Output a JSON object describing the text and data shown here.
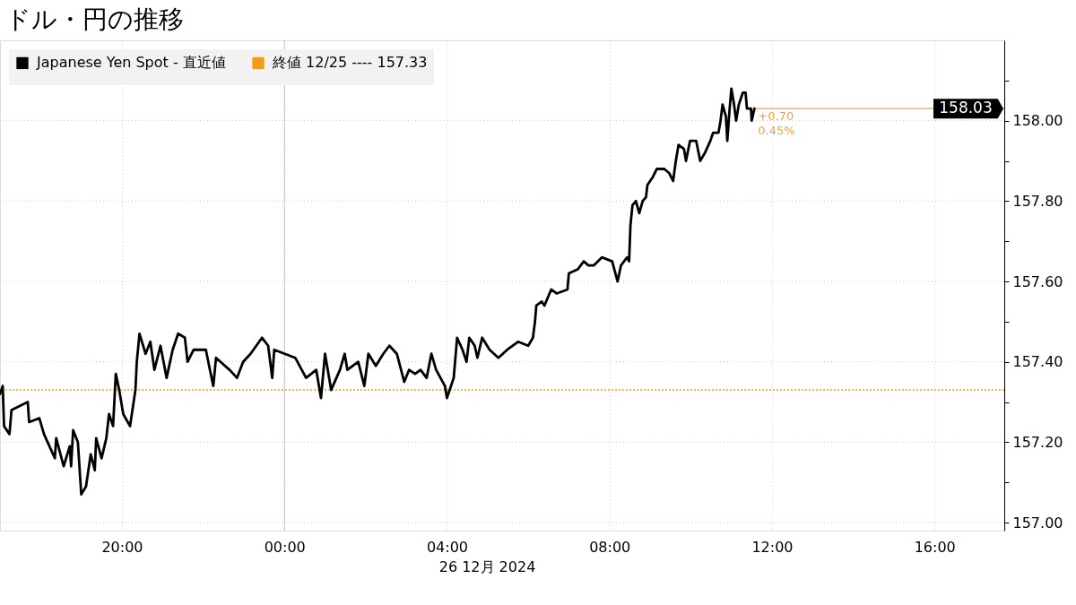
{
  "chart_data": {
    "type": "line",
    "title": "ドル・円の推移",
    "xlabel": "26 12月 2024",
    "x": [
      "2024-12-25T17:00",
      "2024-12-25T17:04",
      "2024-12-25T17:06",
      "2024-12-25T17:14",
      "2024-12-25T17:17",
      "2024-12-25T17:41",
      "2024-12-25T17:43",
      "2024-12-25T17:58",
      "2024-12-25T18:05",
      "2024-12-25T18:21",
      "2024-12-25T18:23",
      "2024-12-25T18:34",
      "2024-12-25T18:43",
      "2024-12-25T18:45",
      "2024-12-25T18:48",
      "2024-12-25T18:55",
      "2024-12-25T19:00",
      "2024-12-25T19:07",
      "2024-12-25T19:14",
      "2024-12-25T19:20",
      "2024-12-25T19:22",
      "2024-12-25T19:30",
      "2024-12-25T19:37",
      "2024-12-25T19:41",
      "2024-12-25T19:47",
      "2024-12-25T19:51",
      "2024-12-25T19:56",
      "2024-12-25T20:02",
      "2024-12-25T20:12",
      "2024-12-25T20:20",
      "2024-12-25T20:22",
      "2024-12-25T20:26",
      "2024-12-25T20:35",
      "2024-12-25T20:42",
      "2024-12-25T20:48",
      "2024-12-25T20:57",
      "2024-12-25T21:06",
      "2024-12-25T21:15",
      "2024-12-25T21:23",
      "2024-12-25T21:33",
      "2024-12-25T21:37",
      "2024-12-25T21:46",
      "2024-12-25T22:04",
      "2024-12-25T22:10",
      "2024-12-25T22:15",
      "2024-12-25T22:19",
      "2024-12-25T22:39",
      "2024-12-25T22:50",
      "2024-12-25T22:59",
      "2024-12-25T23:10",
      "2024-12-25T23:27",
      "2024-12-25T23:36",
      "2024-12-25T23:42",
      "2024-12-25T23:45",
      "2024-12-26T00:16",
      "2024-12-26T00:32",
      "2024-12-26T00:47",
      "2024-12-26T00:54",
      "2024-12-26T01:00",
      "2024-12-26T01:09",
      "2024-12-26T01:22",
      "2024-12-26T01:29",
      "2024-12-26T01:33",
      "2024-12-26T01:49",
      "2024-12-26T01:58",
      "2024-12-26T02:04",
      "2024-12-26T02:15",
      "2024-12-26T02:26",
      "2024-12-26T02:35",
      "2024-12-26T02:46",
      "2024-12-26T02:57",
      "2024-12-26T03:04",
      "2024-12-26T03:13",
      "2024-12-26T03:21",
      "2024-12-26T03:30",
      "2024-12-26T03:37",
      "2024-12-26T03:44",
      "2024-12-26T03:57",
      "2024-12-26T04:00",
      "2024-12-26T04:10",
      "2024-12-26T04:15",
      "2024-12-26T04:23",
      "2024-12-26T04:29",
      "2024-12-26T04:33",
      "2024-12-26T04:41",
      "2024-12-26T04:45",
      "2024-12-26T04:52",
      "2024-12-26T05:03",
      "2024-12-26T05:16",
      "2024-12-26T05:29",
      "2024-12-26T05:45",
      "2024-12-26T06:00",
      "2024-12-26T06:07",
      "2024-12-26T06:10",
      "2024-12-26T06:12",
      "2024-12-26T06:20",
      "2024-12-26T06:24",
      "2024-12-26T06:34",
      "2024-12-26T06:42",
      "2024-12-26T06:58",
      "2024-12-26T07:00",
      "2024-12-26T07:13",
      "2024-12-26T07:22",
      "2024-12-26T07:29",
      "2024-12-26T07:37",
      "2024-12-26T07:49",
      "2024-12-26T08:04",
      "2024-12-26T08:12",
      "2024-12-26T08:17",
      "2024-12-26T08:26",
      "2024-12-26T08:29",
      "2024-12-26T08:31",
      "2024-12-26T08:34",
      "2024-12-26T08:39",
      "2024-12-26T08:44",
      "2024-12-26T08:49",
      "2024-12-26T08:54",
      "2024-12-26T08:56",
      "2024-12-26T09:04",
      "2024-12-26T09:10",
      "2024-12-26T09:21",
      "2024-12-26T09:28",
      "2024-12-26T09:34",
      "2024-12-26T09:38",
      "2024-12-26T09:42",
      "2024-12-26T09:50",
      "2024-12-26T09:53",
      "2024-12-26T09:59",
      "2024-12-26T10:08",
      "2024-12-26T10:14",
      "2024-12-26T10:21",
      "2024-12-26T10:29",
      "2024-12-26T10:33",
      "2024-12-26T10:41",
      "2024-12-26T10:44",
      "2024-12-26T10:47",
      "2024-12-26T10:52",
      "2024-12-26T10:54",
      "2024-12-26T10:57",
      "2024-12-26T11:00",
      "2024-12-26T11:04",
      "2024-12-26T11:07",
      "2024-12-26T11:11",
      "2024-12-26T11:17",
      "2024-12-26T11:21",
      "2024-12-26T11:23",
      "2024-12-26T11:29",
      "2024-12-26T11:30",
      "2024-12-26T11:34"
    ],
    "series": [
      {
        "name": "Japanese Yen Spot - 直近値",
        "color": "#000000",
        "values": [
          157.32,
          157.34,
          157.24,
          157.22,
          157.28,
          157.3,
          157.25,
          157.26,
          157.22,
          157.16,
          157.21,
          157.14,
          157.19,
          157.14,
          157.23,
          157.2,
          157.07,
          157.09,
          157.17,
          157.13,
          157.21,
          157.16,
          157.21,
          157.27,
          157.24,
          157.37,
          157.33,
          157.27,
          157.24,
          157.33,
          157.4,
          157.47,
          157.42,
          157.45,
          157.38,
          157.44,
          157.36,
          157.43,
          157.47,
          157.46,
          157.4,
          157.43,
          157.43,
          157.38,
          157.34,
          157.41,
          157.38,
          157.36,
          157.4,
          157.42,
          157.46,
          157.44,
          157.36,
          157.43,
          157.41,
          157.36,
          157.38,
          157.31,
          157.42,
          157.33,
          157.38,
          157.42,
          157.38,
          157.4,
          157.34,
          157.42,
          157.39,
          157.42,
          157.44,
          157.42,
          157.35,
          157.38,
          157.37,
          157.38,
          157.36,
          157.42,
          157.38,
          157.34,
          157.31,
          157.36,
          157.46,
          157.43,
          157.4,
          157.46,
          157.44,
          157.41,
          157.46,
          157.43,
          157.41,
          157.43,
          157.45,
          157.44,
          157.46,
          157.5,
          157.54,
          157.55,
          157.54,
          157.58,
          157.57,
          157.58,
          157.62,
          157.63,
          157.65,
          157.64,
          157.64,
          157.66,
          157.65,
          157.6,
          157.64,
          157.66,
          157.65,
          157.74,
          157.79,
          157.8,
          157.77,
          157.8,
          157.81,
          157.84,
          157.86,
          157.88,
          157.88,
          157.87,
          157.85,
          157.9,
          157.94,
          157.93,
          157.9,
          157.95,
          157.95,
          157.9,
          157.92,
          157.95,
          157.97,
          157.97,
          158.0,
          158.04,
          158.01,
          157.95,
          158.02,
          158.08,
          158.04,
          158.0,
          158.04,
          158.07,
          158.07,
          158.03,
          158.03,
          158.0,
          158.03
        ]
      }
    ],
    "xlim": [
      "2024-12-25T17:00",
      "2024-12-26T17:43"
    ],
    "xticks": [
      {
        "value": "2024-12-25T20:00",
        "label": "20:00"
      },
      {
        "value": "2024-12-26T00:00",
        "label": "00:00"
      },
      {
        "value": "2024-12-26T04:00",
        "label": "04:00"
      },
      {
        "value": "2024-12-26T08:00",
        "label": "08:00"
      },
      {
        "value": "2024-12-26T12:00",
        "label": "12:00"
      },
      {
        "value": "2024-12-26T16:00",
        "label": "16:00"
      }
    ],
    "ylim": [
      156.98,
      158.2
    ],
    "yticks": [
      {
        "value": 157,
        "label": "157.00"
      },
      {
        "value": 157.1,
        "label": null
      },
      {
        "value": 157.2,
        "label": "157.20"
      },
      {
        "value": 157.3,
        "label": null
      },
      {
        "value": 157.4,
        "label": "157.40"
      },
      {
        "value": 157.5,
        "label": null
      },
      {
        "value": 157.6,
        "label": "157.60"
      },
      {
        "value": 157.7,
        "label": null
      },
      {
        "value": 157.8,
        "label": "157.80"
      },
      {
        "value": 157.9,
        "label": null
      },
      {
        "value": 158,
        "label": "158.00"
      },
      {
        "value": 158.1,
        "label": null
      }
    ],
    "ref_lines": [
      {
        "axis": "y",
        "value": 157.33,
        "label": "終値 12/25 ---- 157.33",
        "color": "#f39c1b",
        "line_style": "dotted"
      },
      {
        "axis": "y",
        "value": 158.03,
        "label": "158.03",
        "color": "#f0a53a",
        "line_style": "solid"
      },
      {
        "axis": "x",
        "value": "2024-12-26T00:00",
        "color": "#c0c0c0",
        "line_style": "solid"
      }
    ],
    "annotations": [
      {
        "text": "+0.70",
        "x": "2024-12-26T11:34",
        "y": 158.03
      },
      {
        "text": "0.45%",
        "x": "2024-12-26T11:34",
        "y": 158.03
      }
    ],
    "grid": true,
    "legend": "top left",
    "line_style": "solid"
  }
}
